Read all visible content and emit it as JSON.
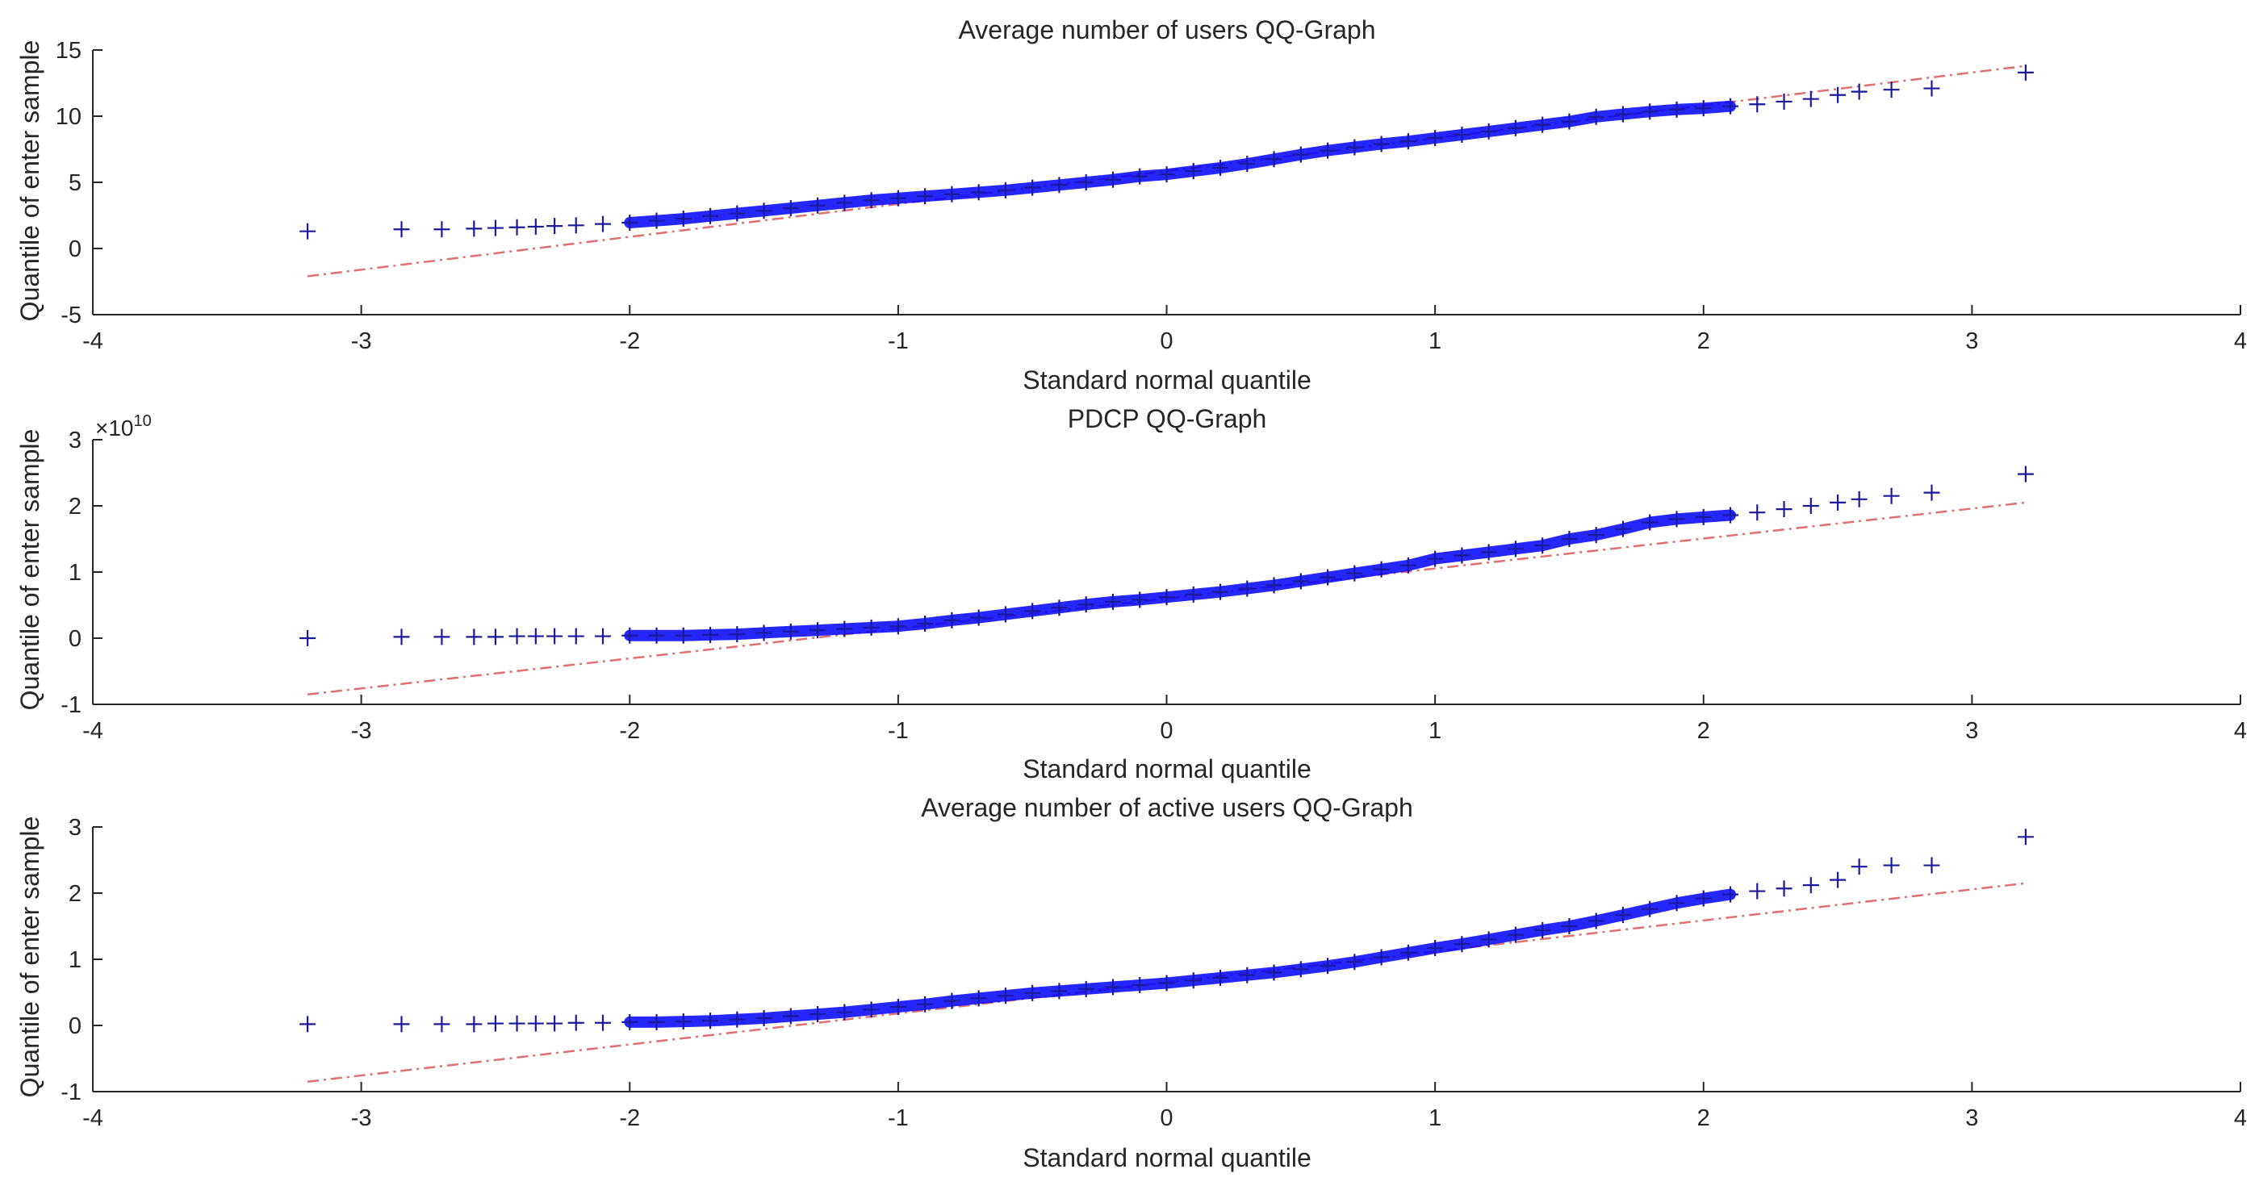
{
  "chart_data": [
    {
      "type": "scatter",
      "title": "Average number of users QQ-Graph",
      "xlabel": "Standard normal quantile",
      "ylabel": "Quantile of enter sample",
      "exponent_label": "",
      "xlim": [
        -4,
        4
      ],
      "ylim": [
        -5,
        15
      ],
      "xticks": [
        "-4",
        "-3",
        "-2",
        "-1",
        "0",
        "1",
        "2",
        "3",
        "4"
      ],
      "yticks": [
        "-5",
        "0",
        "5",
        "10",
        "15"
      ],
      "marker_color": "#0000ff",
      "line_color": "#e07070",
      "reference_line": {
        "x": [
          -3.2,
          3.2
        ],
        "y": [
          -2.1,
          13.8
        ]
      },
      "points": {
        "x": [
          -3.2,
          -2.85,
          -2.7,
          -2.58,
          -2.5,
          -2.42,
          -2.35,
          -2.28,
          -2.2,
          -2.1,
          -2.0,
          -1.9,
          -1.8,
          -1.7,
          -1.6,
          -1.5,
          -1.4,
          -1.3,
          -1.2,
          -1.1,
          -1.0,
          -0.9,
          -0.8,
          -0.7,
          -0.6,
          -0.5,
          -0.4,
          -0.3,
          -0.2,
          -0.1,
          0.0,
          0.1,
          0.2,
          0.3,
          0.4,
          0.5,
          0.6,
          0.7,
          0.8,
          0.9,
          1.0,
          1.1,
          1.2,
          1.3,
          1.4,
          1.5,
          1.6,
          1.7,
          1.8,
          1.9,
          2.0,
          2.1,
          2.2,
          2.3,
          2.4,
          2.5,
          2.58,
          2.7,
          2.85,
          3.2
        ],
        "y": [
          1.3,
          1.45,
          1.45,
          1.5,
          1.55,
          1.6,
          1.65,
          1.7,
          1.75,
          1.85,
          1.95,
          2.1,
          2.25,
          2.45,
          2.65,
          2.85,
          3.05,
          3.25,
          3.45,
          3.65,
          3.8,
          3.95,
          4.1,
          4.25,
          4.4,
          4.6,
          4.8,
          5.0,
          5.2,
          5.45,
          5.6,
          5.85,
          6.1,
          6.4,
          6.75,
          7.1,
          7.4,
          7.65,
          7.9,
          8.1,
          8.35,
          8.6,
          8.85,
          9.1,
          9.35,
          9.6,
          9.95,
          10.15,
          10.35,
          10.5,
          10.6,
          10.75,
          10.9,
          11.1,
          11.3,
          11.6,
          11.85,
          12.0,
          12.1,
          13.3
        ]
      }
    },
    {
      "type": "scatter",
      "title": "PDCP QQ-Graph",
      "xlabel": "Standard normal quantile",
      "ylabel": "Quantile of enter sample",
      "exponent_label": "×10",
      "exponent_power": "10",
      "xlim": [
        -4,
        4
      ],
      "ylim": [
        -1,
        3
      ],
      "xticks": [
        "-4",
        "-3",
        "-2",
        "-1",
        "0",
        "1",
        "2",
        "3",
        "4"
      ],
      "yticks": [
        "-1",
        "0",
        "1",
        "2",
        "3"
      ],
      "marker_color": "#0000ff",
      "line_color": "#e07070",
      "reference_line": {
        "x": [
          -3.2,
          3.2
        ],
        "y": [
          -0.85,
          2.05
        ]
      },
      "points": {
        "x": [
          -3.2,
          -2.85,
          -2.7,
          -2.58,
          -2.5,
          -2.42,
          -2.35,
          -2.28,
          -2.2,
          -2.1,
          -2.0,
          -1.9,
          -1.8,
          -1.7,
          -1.6,
          -1.5,
          -1.4,
          -1.3,
          -1.2,
          -1.1,
          -1.0,
          -0.9,
          -0.8,
          -0.7,
          -0.6,
          -0.5,
          -0.4,
          -0.3,
          -0.2,
          -0.1,
          0.0,
          0.1,
          0.2,
          0.3,
          0.4,
          0.5,
          0.6,
          0.7,
          0.8,
          0.9,
          1.0,
          1.1,
          1.2,
          1.3,
          1.4,
          1.5,
          1.6,
          1.7,
          1.8,
          1.9,
          2.0,
          2.1,
          2.2,
          2.3,
          2.4,
          2.5,
          2.58,
          2.7,
          2.85,
          3.2
        ],
        "y": [
          0.0,
          0.02,
          0.02,
          0.02,
          0.02,
          0.03,
          0.03,
          0.03,
          0.03,
          0.03,
          0.04,
          0.04,
          0.04,
          0.05,
          0.06,
          0.08,
          0.1,
          0.12,
          0.14,
          0.16,
          0.18,
          0.22,
          0.27,
          0.31,
          0.36,
          0.41,
          0.46,
          0.51,
          0.55,
          0.58,
          0.62,
          0.66,
          0.7,
          0.75,
          0.8,
          0.86,
          0.92,
          0.98,
          1.04,
          1.1,
          1.2,
          1.25,
          1.3,
          1.35,
          1.4,
          1.5,
          1.56,
          1.65,
          1.75,
          1.8,
          1.83,
          1.86,
          1.9,
          1.95,
          2.0,
          2.05,
          2.1,
          2.15,
          2.2,
          2.48
        ]
      }
    },
    {
      "type": "scatter",
      "title": "Average number of active users QQ-Graph",
      "xlabel": "Standard normal quantile",
      "ylabel": "Quantile of enter sample",
      "exponent_label": "",
      "xlim": [
        -4,
        4
      ],
      "ylim": [
        -1,
        3
      ],
      "xticks": [
        "-4",
        "-3",
        "-2",
        "-1",
        "0",
        "1",
        "2",
        "3",
        "4"
      ],
      "yticks": [
        "-1",
        "0",
        "1",
        "2",
        "3"
      ],
      "marker_color": "#0000ff",
      "line_color": "#e07070",
      "reference_line": {
        "x": [
          -3.2,
          3.2
        ],
        "y": [
          -0.85,
          2.15
        ]
      },
      "points": {
        "x": [
          -3.2,
          -2.85,
          -2.7,
          -2.58,
          -2.5,
          -2.42,
          -2.35,
          -2.28,
          -2.2,
          -2.1,
          -2.0,
          -1.9,
          -1.8,
          -1.7,
          -1.6,
          -1.5,
          -1.4,
          -1.3,
          -1.2,
          -1.1,
          -1.0,
          -0.9,
          -0.8,
          -0.7,
          -0.6,
          -0.5,
          -0.4,
          -0.3,
          -0.2,
          -0.1,
          0.0,
          0.1,
          0.2,
          0.3,
          0.4,
          0.5,
          0.6,
          0.7,
          0.8,
          0.9,
          1.0,
          1.1,
          1.2,
          1.3,
          1.4,
          1.5,
          1.6,
          1.7,
          1.8,
          1.9,
          2.0,
          2.1,
          2.2,
          2.3,
          2.4,
          2.5,
          2.58,
          2.7,
          2.85,
          3.2
        ],
        "y": [
          0.02,
          0.02,
          0.02,
          0.02,
          0.03,
          0.03,
          0.03,
          0.03,
          0.04,
          0.04,
          0.05,
          0.05,
          0.06,
          0.07,
          0.09,
          0.11,
          0.14,
          0.17,
          0.2,
          0.24,
          0.28,
          0.32,
          0.37,
          0.41,
          0.45,
          0.49,
          0.52,
          0.55,
          0.58,
          0.61,
          0.64,
          0.68,
          0.72,
          0.76,
          0.8,
          0.85,
          0.9,
          0.96,
          1.03,
          1.1,
          1.17,
          1.23,
          1.3,
          1.37,
          1.44,
          1.5,
          1.58,
          1.67,
          1.76,
          1.85,
          1.92,
          1.98,
          2.03,
          2.07,
          2.12,
          2.2,
          2.4,
          2.42,
          2.42,
          2.85
        ]
      }
    }
  ]
}
